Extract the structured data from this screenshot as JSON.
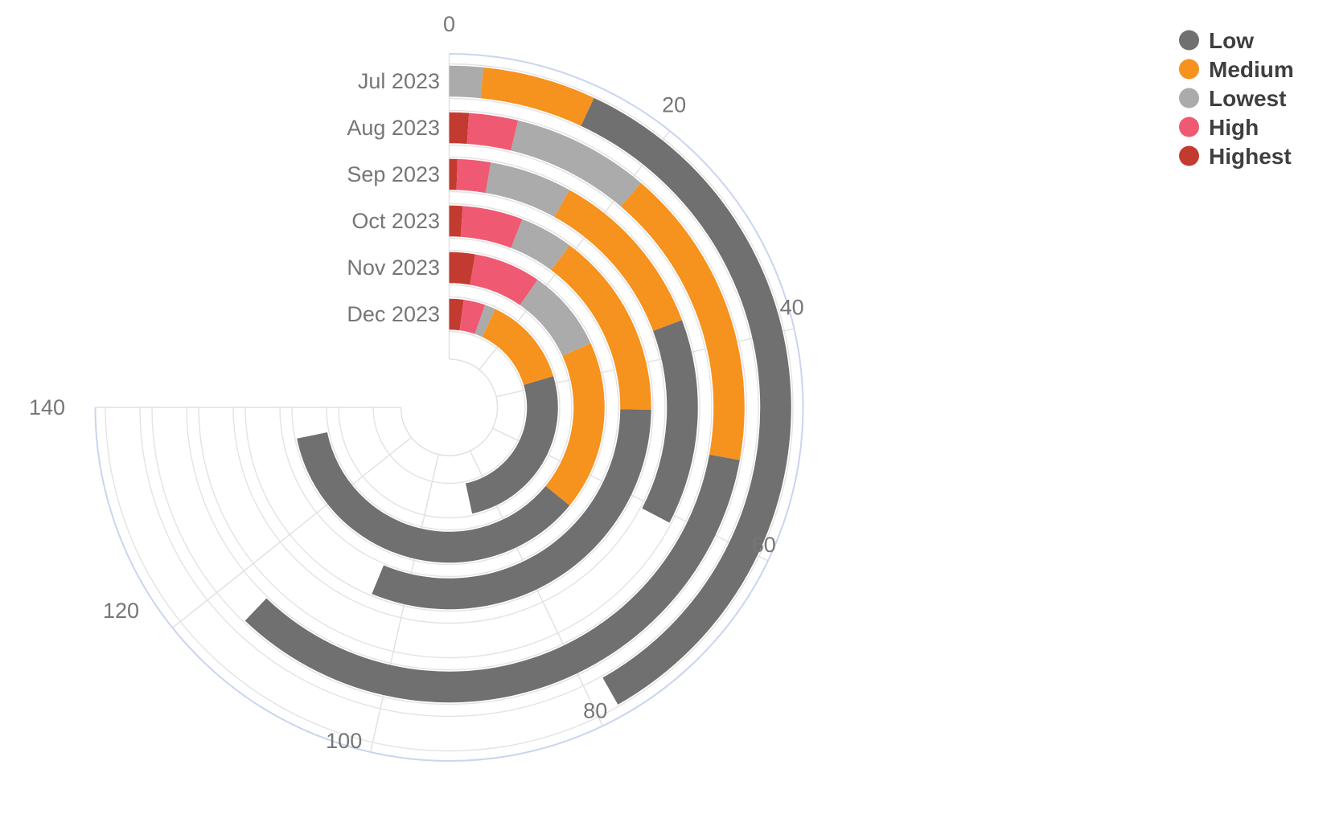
{
  "chart_data": {
    "type": "bar",
    "subtype": "radial_stacked_polar",
    "title": "",
    "categories": [
      "Jul 2023",
      "Aug 2023",
      "Sep 2023",
      "Oct 2023",
      "Nov 2023",
      "Dec 2023"
    ],
    "category_order_note": "outermost ring to innermost ring",
    "series": [
      {
        "name": "Highest",
        "color": "#C33B30",
        "values": [
          0,
          2,
          1,
          2,
          5,
          4
        ]
      },
      {
        "name": "High",
        "color": "#EF5A72",
        "values": [
          0,
          5,
          4,
          9,
          13,
          6
        ]
      },
      {
        "name": "Lowest",
        "color": "#ABABAB",
        "values": [
          3,
          14,
          10,
          8,
          16,
          3
        ]
      },
      {
        "name": "Medium",
        "color": "#F6921E",
        "values": [
          10,
          31,
          21,
          28,
          33,
          25
        ]
      },
      {
        "name": "Low",
        "color": "#707070",
        "values": [
          65,
          64,
          25,
          58,
          67,
          49
        ]
      }
    ],
    "stack_order_from_zero": [
      "Highest",
      "High",
      "Lowest",
      "Medium",
      "Low"
    ],
    "totals": [
      78,
      116,
      61,
      105,
      134,
      87
    ],
    "angular_axis": {
      "ticks": [
        0,
        20,
        40,
        60,
        80,
        100,
        120,
        140
      ],
      "units_at_max_tick": 140,
      "max_tick_angle_deg": 270,
      "start": "top",
      "direction": "clockwise",
      "grid": true
    },
    "legend": {
      "position": "top-right",
      "items": [
        {
          "label": "Low",
          "color": "#707070"
        },
        {
          "label": "Medium",
          "color": "#F6921E"
        },
        {
          "label": "Lowest",
          "color": "#ABABAB"
        },
        {
          "label": "High",
          "color": "#EF5A72"
        },
        {
          "label": "Highest",
          "color": "#C33B30"
        }
      ]
    },
    "style_colors": {
      "outer_boundary_arc": "#C9D5EF",
      "gridline": "#E0E0E0",
      "track_outline": "#E3E3E3",
      "tick_label_text": "#767676",
      "category_label_text": "#767676",
      "legend_text": "#3F3F3F",
      "background": "#FFFFFF"
    }
  }
}
